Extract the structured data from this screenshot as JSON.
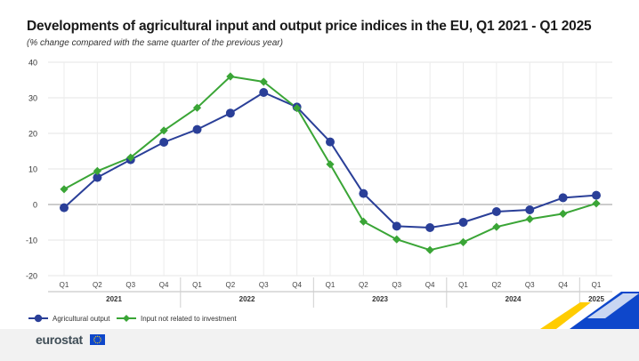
{
  "title": "Developments of agricultural input and output price indices in the EU, Q1 2021 - Q1 2025",
  "subtitle": "(% change compared with the same quarter of the previous year)",
  "brand": "eurostat",
  "colors": {
    "series1": "#2a3f98",
    "series2": "#3aa536",
    "grid": "#e4e4e4",
    "axis": "#333333",
    "flag": "#0e47cb",
    "flag_stars": "#ffd617"
  },
  "chart_data": {
    "type": "line",
    "x": [
      "Q1",
      "Q2",
      "Q3",
      "Q4",
      "Q1",
      "Q2",
      "Q3",
      "Q4",
      "Q1",
      "Q2",
      "Q3",
      "Q4",
      "Q1",
      "Q2",
      "Q3",
      "Q4",
      "Q1"
    ],
    "years": [
      {
        "label": "2021",
        "start": 0,
        "end": 3
      },
      {
        "label": "2022",
        "start": 4,
        "end": 7
      },
      {
        "label": "2023",
        "start": 8,
        "end": 11
      },
      {
        "label": "2024",
        "start": 12,
        "end": 15
      },
      {
        "label": "2025",
        "start": 16,
        "end": 16
      }
    ],
    "yticks": [
      "40",
      "30",
      "20",
      "10",
      "0",
      "-10",
      "-20"
    ],
    "ylim": [
      -20,
      40
    ],
    "grid": true,
    "legend_position": "bottom-left",
    "series": [
      {
        "name": "Agricultural output",
        "marker": "circle",
        "color": "#2a3f98",
        "values": [
          -0.9,
          7.6,
          12.6,
          17.5,
          21.1,
          25.7,
          31.5,
          27.4,
          17.6,
          3.1,
          -6.1,
          -6.5,
          -5.0,
          -2.0,
          -1.5,
          1.9,
          2.6
        ]
      },
      {
        "name": "Input not related to investment",
        "marker": "diamond",
        "color": "#3aa536",
        "values": [
          4.3,
          9.4,
          13.2,
          20.8,
          27.2,
          36.0,
          34.5,
          27.1,
          11.3,
          -4.8,
          -9.8,
          -12.8,
          -10.6,
          -6.3,
          -4.1,
          -2.6,
          0.3
        ]
      }
    ]
  }
}
